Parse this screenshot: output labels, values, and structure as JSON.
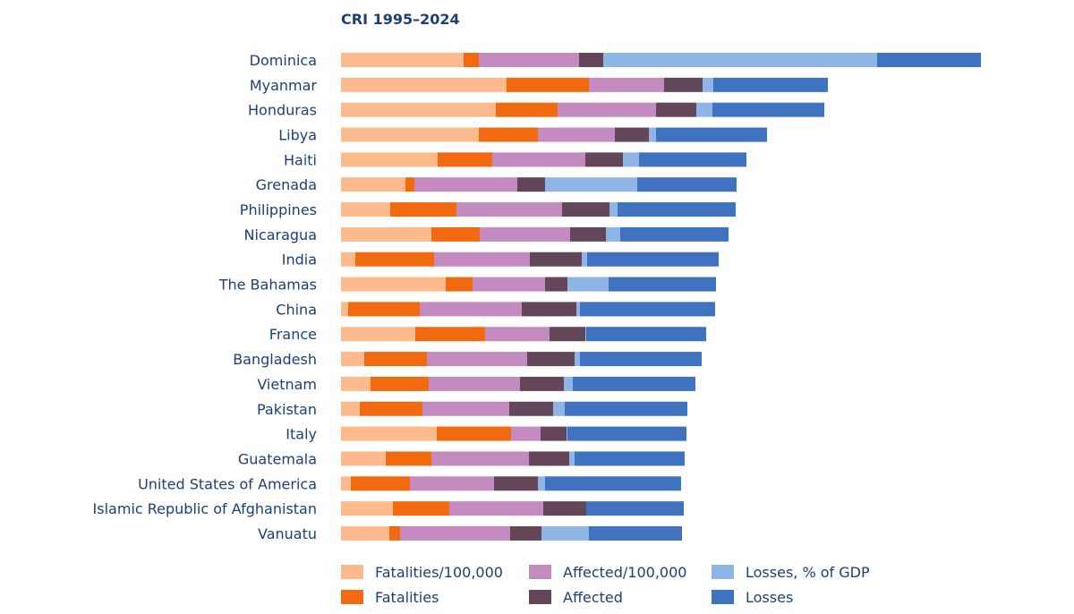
{
  "chart_data": {
    "type": "bar",
    "orientation": "horizontal",
    "stacked": true,
    "title": "CRI 1995–2024",
    "xlabel": "",
    "ylabel": "",
    "grid": false,
    "axes_visible": false,
    "legend_position": "bottom",
    "units": "relative (no axis printed)",
    "categories": [
      "Dominica",
      "Myanmar",
      "Honduras",
      "Libya",
      "Haiti",
      "Grenada",
      "Philippines",
      "Nicaragua",
      "India",
      "The Bahamas",
      "China",
      "France",
      "Bangladesh",
      "Vietnam",
      "Pakistan",
      "Italy",
      "Guatemala",
      "United States of America",
      "Islamic Republic of Afghanistan",
      "Vanuatu"
    ],
    "series": [
      {
        "name": "Fatalities/100,000",
        "color": "#FDBB8D",
        "values": [
          137,
          185,
          173,
          154,
          108,
          72,
          55,
          101,
          16,
          117,
          8,
          83,
          26,
          33,
          21,
          107,
          50,
          11,
          58,
          54
        ]
      },
      {
        "name": "Fatalities",
        "color": "#F26A10",
        "values": [
          17,
          92,
          69,
          66,
          61,
          10,
          74,
          54,
          88,
          30,
          80,
          78,
          70,
          65,
          70,
          83,
          51,
          66,
          63,
          12
        ]
      },
      {
        "name": "Affected/100,000",
        "color": "#C38BC0",
        "values": [
          112,
          84,
          110,
          86,
          104,
          115,
          118,
          101,
          107,
          81,
          114,
          72,
          112,
          102,
          97,
          33,
          109,
          94,
          105,
          123
        ]
      },
      {
        "name": "Affected",
        "color": "#634759",
        "values": [
          27,
          43,
          45,
          38,
          42,
          31,
          53,
          40,
          58,
          25,
          61,
          40,
          53,
          49,
          49,
          29,
          45,
          49,
          48,
          35
        ]
      },
      {
        "name": "Losses, % of GDP",
        "color": "#8FB5E6",
        "values": [
          306,
          12,
          18,
          8,
          18,
          103,
          9,
          16,
          6,
          46,
          4,
          1,
          6,
          10,
          13,
          1,
          6,
          8,
          0,
          53
        ]
      },
      {
        "name": "Losses",
        "color": "#3F72BF",
        "values": [
          116,
          128,
          125,
          124,
          120,
          111,
          132,
          121,
          147,
          120,
          151,
          134,
          136,
          137,
          137,
          133,
          123,
          152,
          109,
          104
        ]
      }
    ]
  }
}
